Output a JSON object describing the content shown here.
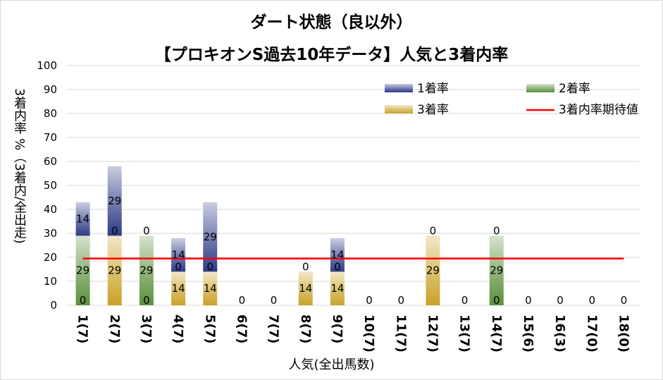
{
  "chart_data": {
    "type": "bar",
    "stacked": true,
    "title": "ダート状態（良以外）",
    "subtitle": "【プロキオンS過去10年データ】人気と3着内率",
    "xlabel": "人気(全出馬数)",
    "ylabel": "3着内率 %（3着内/全出走)",
    "ylim": [
      0,
      100
    ],
    "yticks": [
      "0",
      "10",
      "20",
      "30",
      "40",
      "50",
      "60",
      "70",
      "80",
      "90",
      "100"
    ],
    "grid": true,
    "legend_position": "top-right",
    "categories": [
      "1(7)",
      "2(7)",
      "3(7)",
      "4(7)",
      "5(7)",
      "6(7)",
      "7(7)",
      "8(7)",
      "9(7)",
      "10(7)",
      "11(7)",
      "12(7)",
      "13(7)",
      "14(7)",
      "15(6)",
      "16(3)",
      "17(0)",
      "18(0)"
    ],
    "series": [
      {
        "name": "3着率",
        "color": "#c9a227",
        "values": [
          0,
          29,
          0,
          14,
          14,
          0,
          0,
          14,
          14,
          0,
          0,
          29,
          0,
          0,
          0,
          0,
          0,
          0
        ],
        "labels": [
          "0",
          "29",
          "0",
          "14",
          "14",
          "0",
          "0",
          "14",
          "14",
          "0",
          "0",
          "29",
          "0",
          "0",
          "0",
          "0",
          "0",
          "0"
        ]
      },
      {
        "name": "2着率",
        "color": "#5a8f3c",
        "values": [
          29,
          0,
          29,
          0,
          0,
          0,
          0,
          0,
          0,
          0,
          0,
          0,
          0,
          29,
          0,
          0,
          0,
          0
        ],
        "labels": [
          "29",
          "0",
          "29",
          "0",
          "0",
          "",
          "",
          "0",
          "0",
          "",
          "",
          "0",
          "",
          "29",
          "",
          "",
          "",
          ""
        ]
      },
      {
        "name": "1着率",
        "color": "#2e3a87",
        "values": [
          14,
          29,
          0,
          14,
          29,
          0,
          0,
          0,
          14,
          0,
          0,
          0,
          0,
          0,
          0,
          0,
          0,
          0
        ],
        "labels": [
          "14",
          "29",
          "0",
          "14",
          "29",
          "",
          "",
          "",
          "14",
          "",
          "",
          "",
          "",
          "0",
          "",
          "",
          "",
          ""
        ]
      }
    ],
    "reference_line": {
      "name": "3着内率期待値",
      "color": "#ff0000",
      "value": 19.5
    }
  }
}
